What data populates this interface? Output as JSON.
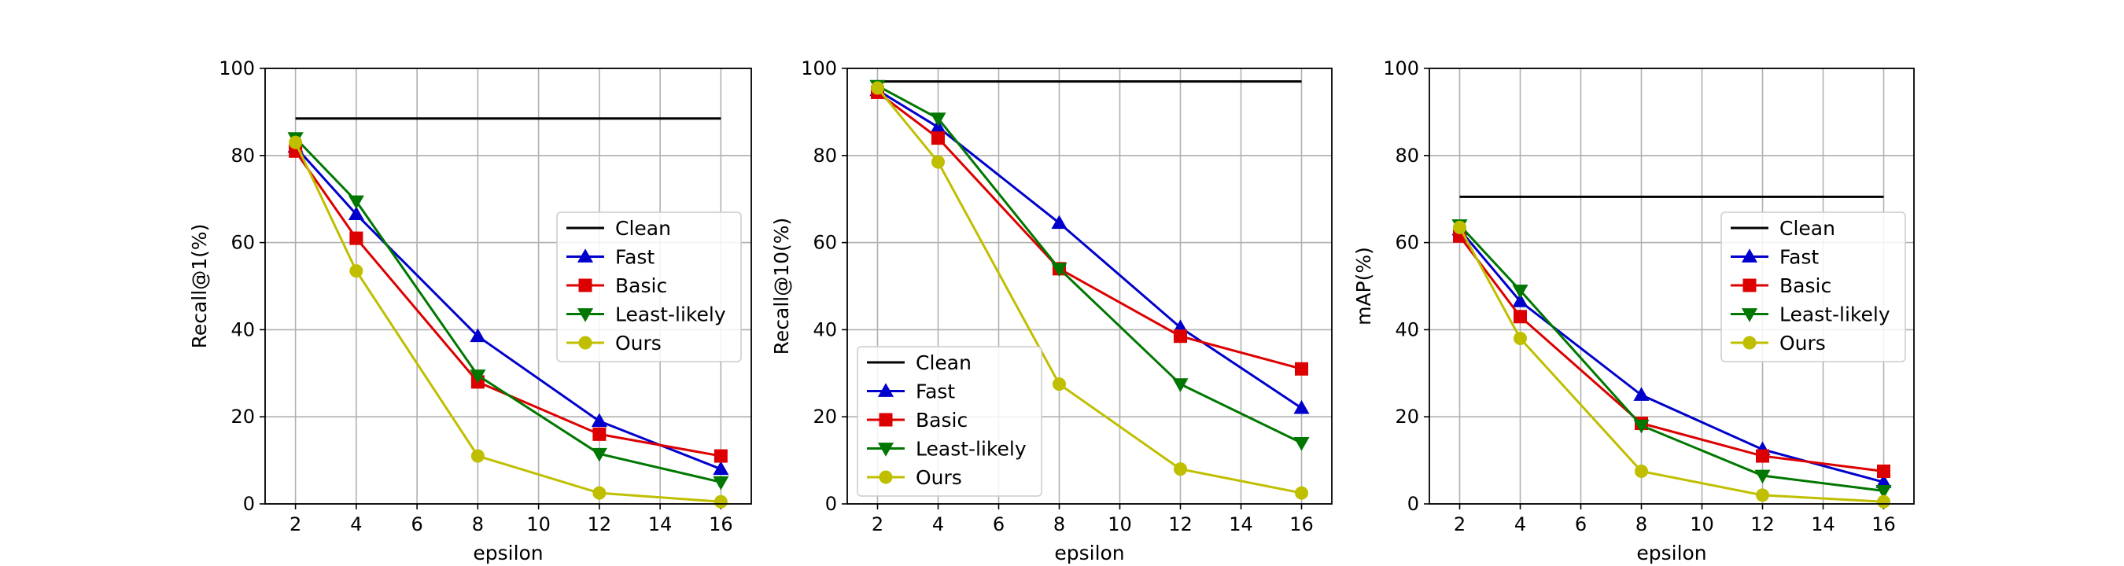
{
  "chart_data": [
    {
      "type": "line",
      "xlabel": "epsilon",
      "ylabel": "Recall@1(%)",
      "xlim": [
        1,
        17
      ],
      "ylim": [
        0,
        100
      ],
      "xticks": [
        2,
        4,
        6,
        8,
        10,
        12,
        14,
        16
      ],
      "yticks": [
        0,
        20,
        40,
        60,
        80,
        100
      ],
      "grid": true,
      "legend_position": "center-right",
      "x": [
        2,
        4,
        8,
        12,
        16
      ],
      "series": [
        {
          "name": "Clean",
          "color": "#000000",
          "marker": "none",
          "x": [
            2,
            16
          ],
          "values": [
            88.5,
            88.5
          ]
        },
        {
          "name": "Fast",
          "color": "#0000cc",
          "marker": "triangle-up",
          "values": [
            82.0,
            66.5,
            38.5,
            19.0,
            8.0
          ]
        },
        {
          "name": "Basic",
          "color": "#dd0000",
          "marker": "square",
          "values": [
            81.0,
            61.0,
            28.0,
            16.0,
            11.0
          ]
        },
        {
          "name": "Least-likely",
          "color": "#007700",
          "marker": "triangle-down",
          "values": [
            84.0,
            69.5,
            29.5,
            11.5,
            5.0
          ]
        },
        {
          "name": "Ours",
          "color": "#bfbf00",
          "marker": "circle",
          "values": [
            83.0,
            53.5,
            11.0,
            2.5,
            0.5
          ]
        }
      ]
    },
    {
      "type": "line",
      "xlabel": "epsilon",
      "ylabel": "Recall@10(%)",
      "xlim": [
        1,
        17
      ],
      "ylim": [
        0,
        100
      ],
      "xticks": [
        2,
        4,
        6,
        8,
        10,
        12,
        14,
        16
      ],
      "yticks": [
        0,
        20,
        40,
        60,
        80,
        100
      ],
      "grid": true,
      "legend_position": "lower-left",
      "x": [
        2,
        4,
        8,
        12,
        16
      ],
      "series": [
        {
          "name": "Clean",
          "color": "#000000",
          "marker": "none",
          "x": [
            2,
            16
          ],
          "values": [
            97.0,
            97.0
          ]
        },
        {
          "name": "Fast",
          "color": "#0000cc",
          "marker": "triangle-up",
          "values": [
            95.0,
            86.5,
            64.5,
            40.5,
            22.0
          ]
        },
        {
          "name": "Basic",
          "color": "#dd0000",
          "marker": "square",
          "values": [
            94.5,
            84.0,
            54.0,
            38.5,
            31.0
          ]
        },
        {
          "name": "Least-likely",
          "color": "#007700",
          "marker": "triangle-down",
          "values": [
            96.0,
            88.5,
            54.0,
            27.5,
            14.0
          ]
        },
        {
          "name": "Ours",
          "color": "#bfbf00",
          "marker": "circle",
          "values": [
            95.5,
            78.5,
            27.5,
            8.0,
            2.5
          ]
        }
      ]
    },
    {
      "type": "line",
      "xlabel": "epsilon",
      "ylabel": "mAP(%)",
      "xlim": [
        1,
        17
      ],
      "ylim": [
        0,
        100
      ],
      "xticks": [
        2,
        4,
        6,
        8,
        10,
        12,
        14,
        16
      ],
      "yticks": [
        0,
        20,
        40,
        60,
        80,
        100
      ],
      "grid": true,
      "legend_position": "center-right",
      "x": [
        2,
        4,
        8,
        12,
        16
      ],
      "series": [
        {
          "name": "Clean",
          "color": "#000000",
          "marker": "none",
          "x": [
            2,
            16
          ],
          "values": [
            70.5,
            70.5
          ]
        },
        {
          "name": "Fast",
          "color": "#0000cc",
          "marker": "triangle-up",
          "values": [
            63.0,
            46.5,
            25.0,
            12.5,
            5.0
          ]
        },
        {
          "name": "Basic",
          "color": "#dd0000",
          "marker": "square",
          "values": [
            61.5,
            43.0,
            18.5,
            11.0,
            7.5
          ]
        },
        {
          "name": "Least-likely",
          "color": "#007700",
          "marker": "triangle-down",
          "values": [
            64.0,
            49.0,
            18.0,
            6.5,
            3.0
          ]
        },
        {
          "name": "Ours",
          "color": "#bfbf00",
          "marker": "circle",
          "values": [
            63.5,
            38.0,
            7.5,
            2.0,
            0.5
          ]
        }
      ]
    }
  ]
}
